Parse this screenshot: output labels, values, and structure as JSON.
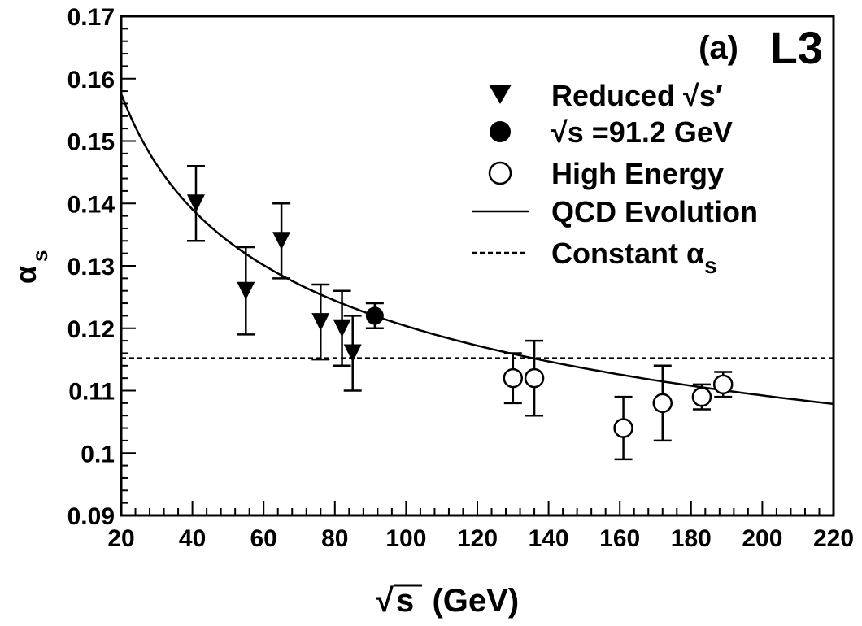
{
  "chart_data": {
    "type": "scatter",
    "xlim": [
      20,
      220
    ],
    "ylim": [
      0.09,
      0.17
    ],
    "x_ticks": [
      20,
      40,
      60,
      80,
      100,
      120,
      140,
      160,
      180,
      200,
      220
    ],
    "y_ticks": [
      0.09,
      0.1,
      0.11,
      0.12,
      0.13,
      0.14,
      0.15,
      0.16,
      0.17
    ],
    "x_tick_labels": [
      "20",
      "40",
      "60",
      "80",
      "100",
      "120",
      "140",
      "160",
      "180",
      "200",
      "220"
    ],
    "y_tick_labels": [
      "0.09",
      "0.1",
      "0.11",
      "0.12",
      "0.13",
      "0.14",
      "0.15",
      "0.16",
      "0.17"
    ],
    "xlabel": {
      "text": "s  (GeV)",
      "radical": "√"
    },
    "ylabel": {
      "symbol": "α",
      "subscript": "s"
    },
    "annotation": {
      "panel": "(a)",
      "experiment": "L3"
    },
    "legend_position": "top-right",
    "series": [
      {
        "name": "Reduced √s′",
        "marker": "triangle-down-filled",
        "points": [
          {
            "x": 41,
            "y": 0.14,
            "ylow": 0.134,
            "yhigh": 0.146
          },
          {
            "x": 55,
            "y": 0.126,
            "ylow": 0.119,
            "yhigh": 0.133
          },
          {
            "x": 65,
            "y": 0.134,
            "ylow": 0.128,
            "yhigh": 0.14
          },
          {
            "x": 76,
            "y": 0.121,
            "ylow": 0.115,
            "yhigh": 0.127
          },
          {
            "x": 82,
            "y": 0.12,
            "ylow": 0.114,
            "yhigh": 0.126
          },
          {
            "x": 85,
            "y": 0.116,
            "ylow": 0.11,
            "yhigh": 0.122
          }
        ]
      },
      {
        "name": "√s =91.2 GeV",
        "marker": "circle-filled",
        "points": [
          {
            "x": 91.2,
            "y": 0.122,
            "ylow": 0.12,
            "yhigh": 0.124
          }
        ]
      },
      {
        "name": "High Energy",
        "marker": "circle-open",
        "points": [
          {
            "x": 130,
            "y": 0.112,
            "ylow": 0.108,
            "yhigh": 0.116
          },
          {
            "x": 136,
            "y": 0.112,
            "ylow": 0.106,
            "yhigh": 0.118
          },
          {
            "x": 161,
            "y": 0.104,
            "ylow": 0.099,
            "yhigh": 0.109
          },
          {
            "x": 172,
            "y": 0.108,
            "ylow": 0.102,
            "yhigh": 0.114
          },
          {
            "x": 183,
            "y": 0.109,
            "ylow": 0.107,
            "yhigh": 0.111
          },
          {
            "x": 189,
            "y": 0.111,
            "ylow": 0.109,
            "yhigh": 0.113
          }
        ]
      },
      {
        "name": "QCD Evolution",
        "style": "solid-line",
        "curve": {
          "reference_x": 91.2,
          "reference_y": 0.122,
          "beta0": 0.6101
        }
      },
      {
        "name": "Constant α",
        "name_subscript": "s",
        "style": "dashed-line",
        "value": 0.1152
      }
    ]
  }
}
